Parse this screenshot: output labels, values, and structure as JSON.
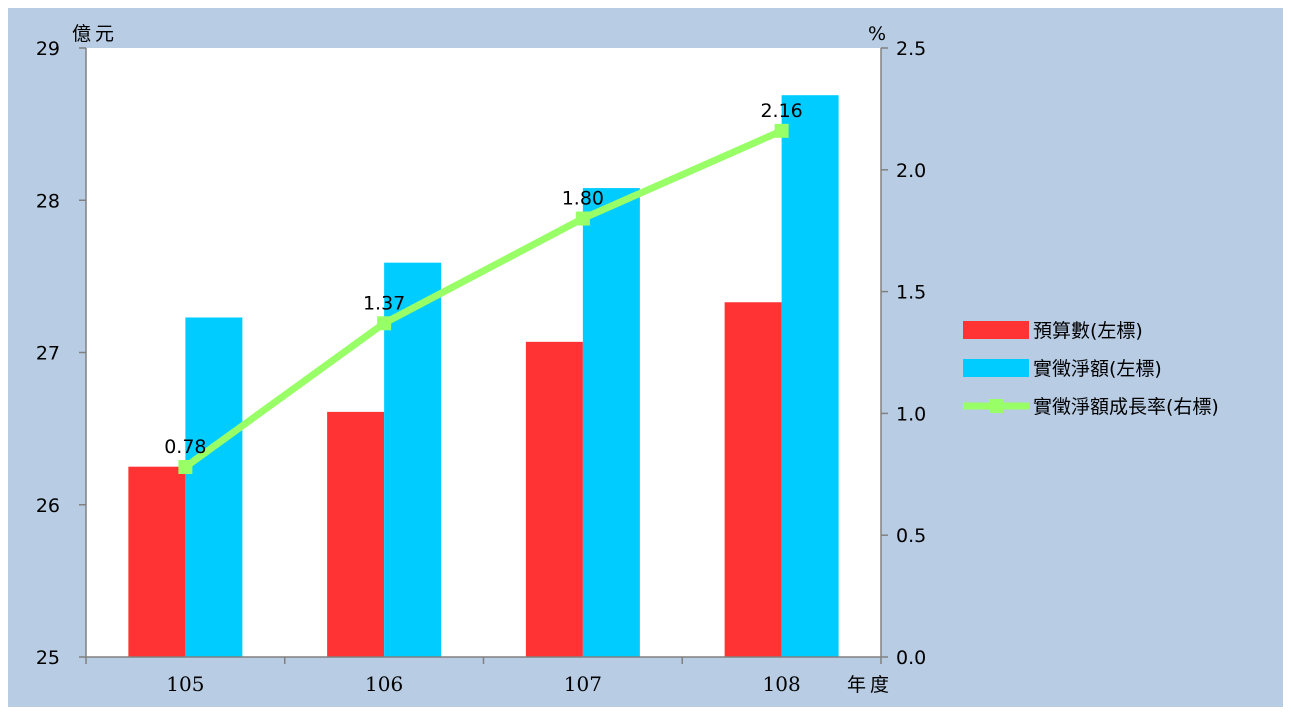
{
  "chart_data": {
    "type": "bar",
    "categories": [
      "105",
      "106",
      "107",
      "108"
    ],
    "series": [
      {
        "name": "預算數(左標)",
        "kind": "bar",
        "axis": "left",
        "color": "#ff3333",
        "values": [
          26.25,
          26.61,
          27.07,
          27.33
        ]
      },
      {
        "name": "實徵淨額(左標)",
        "kind": "bar",
        "axis": "left",
        "color": "#00ccff",
        "values": [
          27.23,
          27.59,
          28.08,
          28.69
        ]
      },
      {
        "name": "實徵淨額成長率(右標)",
        "kind": "line",
        "axis": "right",
        "color": "#99ff66",
        "values": [
          0.78,
          1.37,
          1.8,
          2.16
        ],
        "labels": [
          "0.78",
          "1.37",
          "1.80",
          "2.16"
        ]
      }
    ],
    "y_left": {
      "unit": "億元",
      "ylim": [
        25,
        29
      ],
      "ticks": [
        "25",
        "26",
        "27",
        "28",
        "29"
      ]
    },
    "y_right": {
      "unit": "%",
      "ylim": [
        0,
        2.5
      ],
      "ticks": [
        "0.0",
        "0.5",
        "1.0",
        "1.5",
        "2.0",
        "2.5"
      ]
    },
    "x_axis": {
      "unit": "年度"
    },
    "grid": false,
    "legend_position": "right",
    "colors": {
      "background": "#b8cce4",
      "plot_area": "#ffffff",
      "axis": "#808080"
    }
  }
}
